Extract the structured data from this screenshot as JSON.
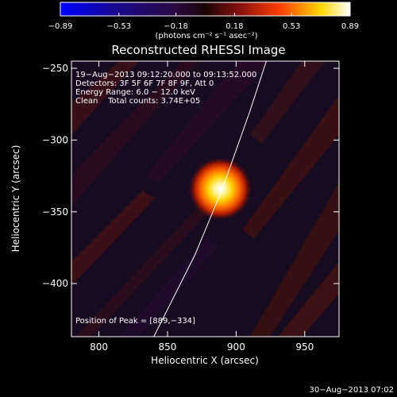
{
  "colorbar": {
    "tick_labels": [
      "−0.89",
      "−0.53",
      "−0.18",
      "0.18",
      "0.53",
      "0.89"
    ],
    "ticks": [
      -0.89,
      -0.53,
      -0.18,
      0.18,
      0.53,
      0.89
    ],
    "range": [
      -0.89,
      0.89
    ],
    "units_label": "(photons cm⁻² s⁻¹ asec⁻²)"
  },
  "chart_data": {
    "type": "heatmap",
    "title": "Reconstructed RHESSI Image",
    "xlabel": "Heliocentric X (arcsec)",
    "ylabel": "Heliocentric Y (arcsec)",
    "xlim": [
      780,
      975
    ],
    "ylim": [
      -437,
      -245
    ],
    "xticks": [
      800,
      850,
      900,
      950
    ],
    "yticks": [
      -250,
      -300,
      -350,
      -400
    ],
    "xtick_labels": [
      "800",
      "850",
      "900",
      "950"
    ],
    "ytick_labels": [
      "−250",
      "−300",
      "−350",
      "−400"
    ],
    "peak": {
      "x": 889,
      "y": -334,
      "value": 0.89
    },
    "info_lines": [
      "19−Aug−2013 09:12:20.000 to 09:13:52.000",
      "Detectors: 3F 5F 6F 7F 8F 9F, Att 0",
      "Energy Range: 6.0 − 12.0 keV",
      "Clean    Total counts: 3.74E+05"
    ],
    "peak_label": "Position of Peak = [889,−334]",
    "limb_curve": [
      [
        840,
        -437
      ],
      [
        870,
        -380
      ],
      [
        890,
        -334
      ],
      [
        910,
        -280
      ],
      [
        922,
        -245
      ]
    ]
  },
  "timestamp": "30−Aug−2013 07:02"
}
